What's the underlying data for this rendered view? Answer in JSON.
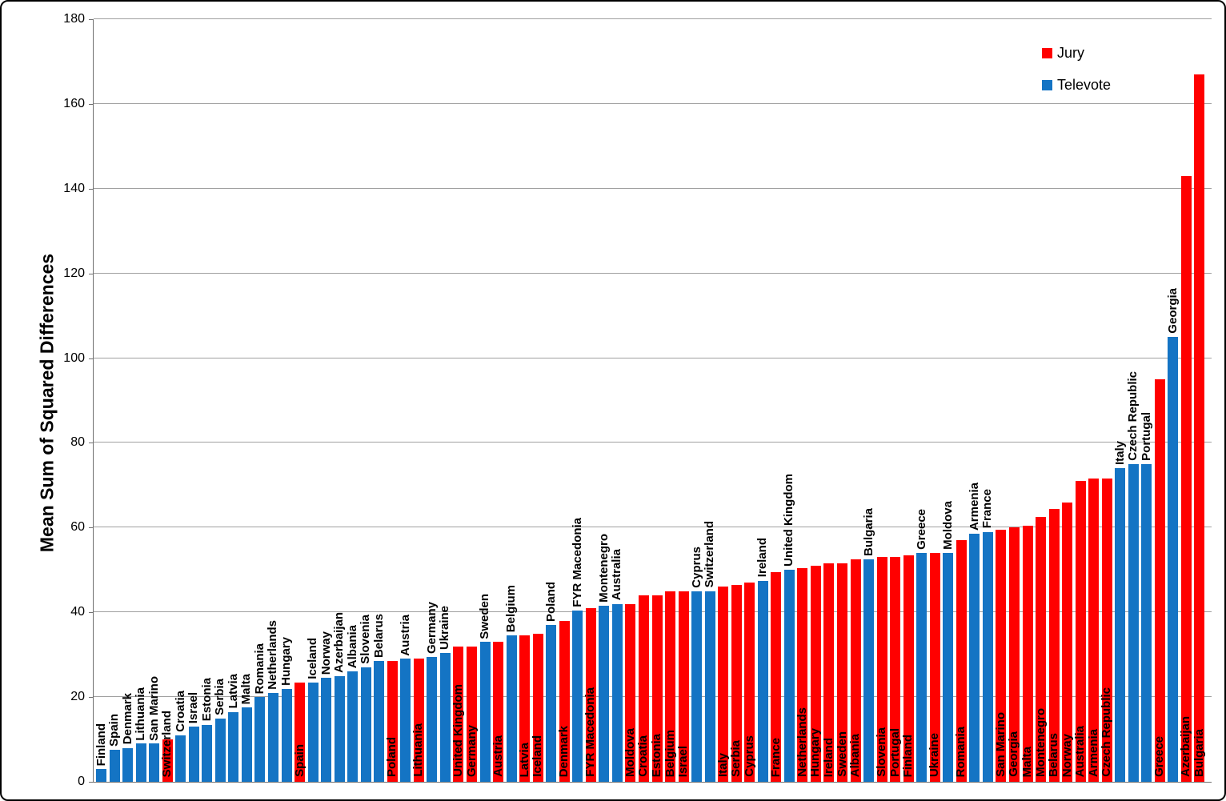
{
  "chart_data": {
    "type": "bar",
    "title": "",
    "xlabel": "",
    "ylabel": "Mean Sum of Squared Differences",
    "ylim": [
      0,
      180
    ],
    "y_ticks": [
      0,
      20,
      40,
      60,
      80,
      100,
      120,
      140,
      160,
      180
    ],
    "grid": "horizontal",
    "legend": {
      "position": "top-right",
      "entries": [
        {
          "label": "Jury",
          "color": "#FF0000"
        },
        {
          "label": "Televote",
          "color": "#1474C4"
        }
      ]
    },
    "series_colors": {
      "Jury": "#FF0000",
      "Televote": "#1474C4"
    },
    "bars": [
      {
        "country": "Finland",
        "series": "Televote",
        "value": 3
      },
      {
        "country": "Spain",
        "series": "Televote",
        "value": 7.5
      },
      {
        "country": "Denmark",
        "series": "Televote",
        "value": 8
      },
      {
        "country": "Lithuania",
        "series": "Televote",
        "value": 9
      },
      {
        "country": "San Marino",
        "series": "Televote",
        "value": 9
      },
      {
        "country": "Switzerland",
        "series": "Jury",
        "value": 10
      },
      {
        "country": "Croatia",
        "series": "Televote",
        "value": 11
      },
      {
        "country": "Israel",
        "series": "Televote",
        "value": 13
      },
      {
        "country": "Estonia",
        "series": "Televote",
        "value": 13.5
      },
      {
        "country": "Serbia",
        "series": "Televote",
        "value": 15
      },
      {
        "country": "Latvia",
        "series": "Televote",
        "value": 16.5
      },
      {
        "country": "Malta",
        "series": "Televote",
        "value": 17.5
      },
      {
        "country": "Romania",
        "series": "Televote",
        "value": 20
      },
      {
        "country": "Netherlands",
        "series": "Televote",
        "value": 21
      },
      {
        "country": "Hungary",
        "series": "Televote",
        "value": 22
      },
      {
        "country": "Spain",
        "series": "Jury",
        "value": 23.5
      },
      {
        "country": "Iceland",
        "series": "Televote",
        "value": 23.5
      },
      {
        "country": "Norway",
        "series": "Televote",
        "value": 24.5
      },
      {
        "country": "Azerbaijan",
        "series": "Televote",
        "value": 25
      },
      {
        "country": "Albania",
        "series": "Televote",
        "value": 26
      },
      {
        "country": "Slovenia",
        "series": "Televote",
        "value": 27
      },
      {
        "country": "Belarus",
        "series": "Televote",
        "value": 28.5
      },
      {
        "country": "Poland",
        "series": "Jury",
        "value": 28.5
      },
      {
        "country": "Austria",
        "series": "Televote",
        "value": 29
      },
      {
        "country": "Lithuania",
        "series": "Jury",
        "value": 29
      },
      {
        "country": "Germany",
        "series": "Televote",
        "value": 29.5
      },
      {
        "country": "Ukraine",
        "series": "Televote",
        "value": 30.5
      },
      {
        "country": "United Kingdom",
        "series": "Jury",
        "value": 32
      },
      {
        "country": "Germany",
        "series": "Jury",
        "value": 32
      },
      {
        "country": "Sweden",
        "series": "Televote",
        "value": 33
      },
      {
        "country": "Austria",
        "series": "Jury",
        "value": 33
      },
      {
        "country": "Belgium",
        "series": "Televote",
        "value": 34.5
      },
      {
        "country": "Latvia",
        "series": "Jury",
        "value": 34.5
      },
      {
        "country": "Iceland",
        "series": "Jury",
        "value": 35
      },
      {
        "country": "Poland",
        "series": "Televote",
        "value": 37
      },
      {
        "country": "Denmark",
        "series": "Jury",
        "value": 38
      },
      {
        "country": "FYR Macedonia",
        "series": "Televote",
        "value": 40.5
      },
      {
        "country": "FYR Macedonia",
        "series": "Jury",
        "value": 41
      },
      {
        "country": "Montenegro",
        "series": "Televote",
        "value": 41.5
      },
      {
        "country": "Australia",
        "series": "Televote",
        "value": 42
      },
      {
        "country": "Moldova",
        "series": "Jury",
        "value": 42
      },
      {
        "country": "Croatia",
        "series": "Jury",
        "value": 44
      },
      {
        "country": "Estonia",
        "series": "Jury",
        "value": 44
      },
      {
        "country": "Belgium",
        "series": "Jury",
        "value": 45
      },
      {
        "country": "Israel",
        "series": "Jury",
        "value": 45
      },
      {
        "country": "Cyprus",
        "series": "Televote",
        "value": 45
      },
      {
        "country": "Switzerland",
        "series": "Televote",
        "value": 45
      },
      {
        "country": "Italy",
        "series": "Jury",
        "value": 46
      },
      {
        "country": "Serbia",
        "series": "Jury",
        "value": 46.5
      },
      {
        "country": "Cyprus",
        "series": "Jury",
        "value": 47
      },
      {
        "country": "Ireland",
        "series": "Televote",
        "value": 47.5
      },
      {
        "country": "France",
        "series": "Jury",
        "value": 49.5
      },
      {
        "country": "United Kingdom",
        "series": "Televote",
        "value": 50
      },
      {
        "country": "Netherlands",
        "series": "Jury",
        "value": 50.5
      },
      {
        "country": "Hungary",
        "series": "Jury",
        "value": 51
      },
      {
        "country": "Ireland",
        "series": "Jury",
        "value": 51.5
      },
      {
        "country": "Sweden",
        "series": "Jury",
        "value": 51.5
      },
      {
        "country": "Albania",
        "series": "Jury",
        "value": 52.5
      },
      {
        "country": "Bulgaria",
        "series": "Televote",
        "value": 52.5
      },
      {
        "country": "Slovenia",
        "series": "Jury",
        "value": 53
      },
      {
        "country": "Portugal",
        "series": "Jury",
        "value": 53
      },
      {
        "country": "Finland",
        "series": "Jury",
        "value": 53.5
      },
      {
        "country": "Greece",
        "series": "Televote",
        "value": 54
      },
      {
        "country": "Ukraine",
        "series": "Jury",
        "value": 54
      },
      {
        "country": "Moldova",
        "series": "Televote",
        "value": 54
      },
      {
        "country": "Romania",
        "series": "Jury",
        "value": 57
      },
      {
        "country": "Armenia",
        "series": "Televote",
        "value": 58.5
      },
      {
        "country": "France",
        "series": "Televote",
        "value": 59
      },
      {
        "country": "San Marino",
        "series": "Jury",
        "value": 59.5
      },
      {
        "country": "Georgia",
        "series": "Jury",
        "value": 60
      },
      {
        "country": "Malta",
        "series": "Jury",
        "value": 60.5
      },
      {
        "country": "Montenegro",
        "series": "Jury",
        "value": 62.5
      },
      {
        "country": "Belarus",
        "series": "Jury",
        "value": 64.5
      },
      {
        "country": "Norway",
        "series": "Jury",
        "value": 66
      },
      {
        "country": "Australia",
        "series": "Jury",
        "value": 71
      },
      {
        "country": "Armenia",
        "series": "Jury",
        "value": 71.5
      },
      {
        "country": "Czech Republic",
        "series": "Jury",
        "value": 71.5
      },
      {
        "country": "Italy",
        "series": "Televote",
        "value": 74
      },
      {
        "country": "Czech Republic",
        "series": "Televote",
        "value": 75
      },
      {
        "country": "Portugal",
        "series": "Televote",
        "value": 75
      },
      {
        "country": "Greece",
        "series": "Jury",
        "value": 95
      },
      {
        "country": "Georgia",
        "series": "Televote",
        "value": 105
      },
      {
        "country": "Azerbaijan",
        "series": "Jury",
        "value": 143
      },
      {
        "country": "Bulgaria",
        "series": "Jury",
        "value": 167
      }
    ]
  },
  "style": {
    "gridline_color": "#a0a0a0",
    "axis_color": "#707070",
    "background": "#ffffff",
    "border_color": "#000000"
  }
}
